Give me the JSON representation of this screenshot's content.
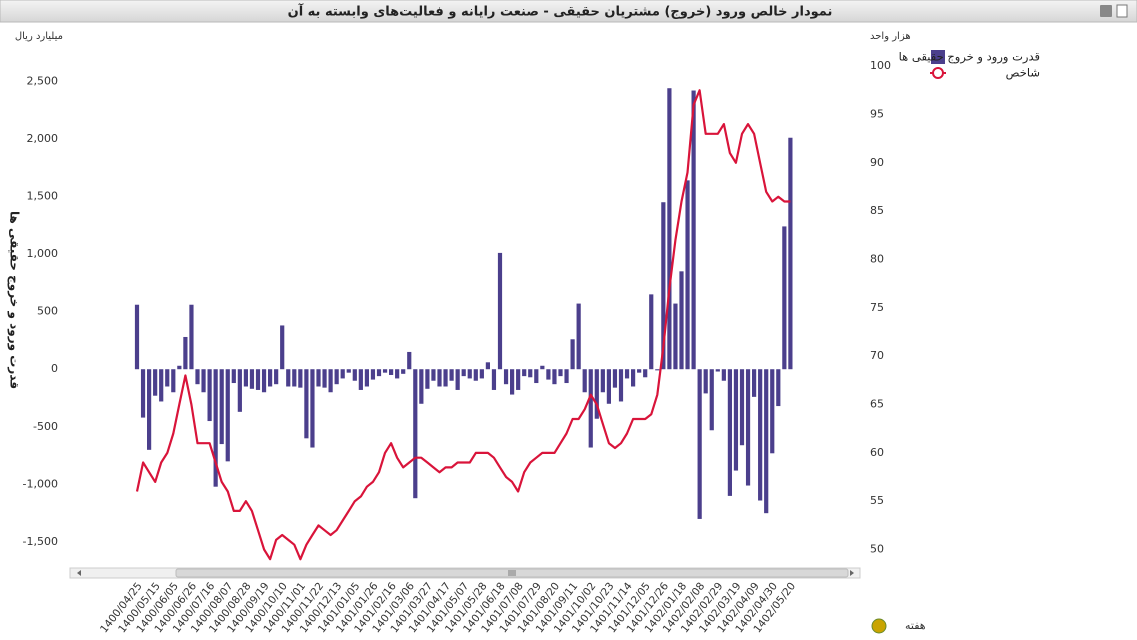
{
  "chart_data": {
    "type": "combo",
    "title": "نمودار خالص ورود (خروج) مشتریان حقیقی - صنعت رایانه و فعالیت‌های وابسته به آن",
    "y_unit": "میلیارد ریال",
    "y2_unit": "هزار واحد",
    "y_title": "قدرت ورود و خروج حقیقی ها",
    "x_label": "هفته",
    "categories": [
      "1400/04/25",
      null,
      null,
      "1400/05/15",
      null,
      null,
      "1400/06/05",
      null,
      null,
      "1400/06/26",
      null,
      null,
      "1400/07/16",
      null,
      null,
      "1400/08/07",
      null,
      null,
      "1400/08/28",
      null,
      null,
      "1400/09/19",
      null,
      null,
      "1400/10/10",
      null,
      null,
      "1400/11/01",
      null,
      null,
      "1400/11/22",
      null,
      null,
      "1400/12/13",
      null,
      null,
      "1401/01/05",
      null,
      null,
      "1401/01/26",
      null,
      null,
      "1401/02/16",
      null,
      null,
      "1401/03/06",
      null,
      null,
      "1401/03/27",
      null,
      null,
      "1401/04/17",
      null,
      null,
      "1401/05/07",
      null,
      null,
      "1401/05/28",
      null,
      null,
      "1401/06/18",
      null,
      null,
      "1401/07/08",
      null,
      null,
      "1401/07/29",
      null,
      null,
      "1401/08/20",
      null,
      null,
      "1401/09/11",
      null,
      null,
      "1401/10/02",
      null,
      null,
      "1401/10/23",
      null,
      null,
      "1401/11/14",
      null,
      null,
      "1401/12/05",
      null,
      null,
      "1401/12/26",
      null,
      null,
      "1402/01/18",
      null,
      null,
      "1402/02/08",
      null,
      null,
      "1402/02/29",
      null,
      null,
      "1402/03/19",
      null,
      null,
      "1402/04/09",
      null,
      null,
      "1402/04/30",
      null,
      null,
      "1402/05/20"
    ],
    "series": [
      {
        "name": "قدرت ورود و خروج حقیقی ها",
        "type": "bar",
        "color": "#4b3f8c",
        "values": [
          560,
          -420,
          -700,
          -230,
          -280,
          -150,
          -200,
          30,
          280,
          560,
          -130,
          -200,
          -450,
          -1020,
          -650,
          -800,
          -120,
          -370,
          -150,
          -170,
          -180,
          -200,
          -150,
          -130,
          380,
          -150,
          -150,
          -160,
          -600,
          -680,
          -150,
          -160,
          -200,
          -130,
          -80,
          -30,
          -100,
          -180,
          -150,
          -90,
          -60,
          -30,
          -50,
          -80,
          -40,
          150,
          -1120,
          -300,
          -170,
          -100,
          -150,
          -150,
          -100,
          -180,
          -60,
          -80,
          -100,
          -80,
          60,
          -180,
          1010,
          -130,
          -220,
          -180,
          -60,
          -70,
          -120,
          30,
          -90,
          -130,
          -60,
          -120,
          260,
          570,
          -200,
          -680,
          -430,
          -200,
          -300,
          -160,
          -280,
          -80,
          -150,
          -30,
          -70,
          650,
          -10,
          1450,
          2440,
          570,
          850,
          1640,
          2420,
          -1300,
          -210,
          -530,
          -20,
          -100,
          -1100,
          -880,
          -660,
          -1010,
          -240,
          -1140,
          -1250,
          -730,
          -320,
          1240,
          2010
        ]
      },
      {
        "name": "شاخص",
        "type": "line",
        "axis": "y2",
        "color": "#d9143a",
        "values": [
          56,
          59,
          58,
          57,
          59,
          60,
          62,
          65,
          68,
          65,
          61,
          61,
          61,
          59,
          57,
          56,
          54,
          54,
          55,
          54,
          52,
          50,
          49,
          51,
          51.5,
          51,
          50.5,
          49,
          50.5,
          51.5,
          52.5,
          52,
          51.5,
          52,
          53,
          54,
          55,
          55.5,
          56.5,
          57,
          58,
          60,
          61,
          59.5,
          58.5,
          59,
          59.5,
          59.5,
          59,
          58.5,
          58,
          58.5,
          58.5,
          59,
          59,
          59,
          60,
          60,
          60,
          59.5,
          58.5,
          57.5,
          57,
          56,
          58,
          59,
          59.5,
          60,
          60,
          60,
          61,
          62,
          63.5,
          63.5,
          64.5,
          66,
          65,
          63,
          61,
          60.5,
          61,
          62,
          63.5,
          63.5,
          63.5,
          64,
          66,
          71,
          77,
          82,
          86,
          89,
          96,
          97.5,
          93,
          93,
          93,
          94,
          91,
          90,
          93,
          94,
          93,
          90,
          87,
          86,
          86.5,
          86,
          86
        ]
      }
    ],
    "ylim": [
      -1700,
      2850
    ],
    "yticks": [
      {
        "value": -1500,
        "label": "-1,500"
      },
      {
        "value": -1000,
        "label": "-1,000"
      },
      -500,
      0,
      500,
      {
        "value": 1000,
        "label": "1,000"
      },
      {
        "value": 1500,
        "label": "1,500"
      },
      {
        "value": 2000,
        "label": "2,000"
      },
      {
        "value": 2500,
        "label": "2,500"
      }
    ],
    "y2lim": [
      48.4,
      102.6
    ],
    "y2ticks": [
      50,
      55,
      60,
      65,
      70,
      75,
      80,
      85,
      90,
      95,
      100
    ],
    "legend": "top-right"
  }
}
